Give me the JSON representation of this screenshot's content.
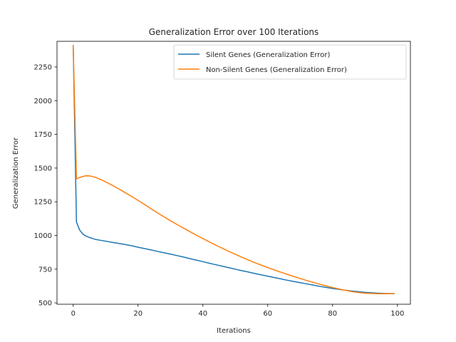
{
  "chart_data": {
    "type": "line",
    "title": "Generalization Error over 100 Iterations",
    "xlabel": "Iterations",
    "ylabel": "Generalization Error",
    "xlim": [
      -5,
      104
    ],
    "ylim": [
      490,
      2440
    ],
    "xticks": [
      0,
      20,
      40,
      60,
      80,
      100
    ],
    "yticks": [
      500,
      750,
      1000,
      1250,
      1500,
      1750,
      2000,
      2250
    ],
    "grid": false,
    "legend_position": "top-right",
    "x": [
      0,
      1,
      2,
      3,
      4,
      5,
      6,
      7,
      8,
      10,
      12,
      14,
      16,
      18,
      20,
      22,
      24,
      26,
      28,
      30,
      32,
      34,
      36,
      38,
      40,
      42,
      44,
      46,
      48,
      50,
      52,
      54,
      56,
      58,
      60,
      62,
      64,
      66,
      68,
      70,
      72,
      74,
      76,
      78,
      80,
      82,
      84,
      86,
      88,
      90,
      92,
      94,
      96,
      98,
      99
    ],
    "series": [
      {
        "name": "Silent Genes (Generalization Error)",
        "color": "#1f77b4",
        "values": [
          2410,
          1100,
          1040,
          1010,
          995,
          985,
          977,
          970,
          966,
          958,
          949,
          941,
          933,
          924,
          913,
          903,
          893,
          882,
          872,
          862,
          851,
          840,
          828,
          817,
          806,
          794,
          783,
          772,
          761,
          750,
          739,
          729,
          718,
          708,
          698,
          688,
          678,
          668,
          659,
          650,
          641,
          632,
          623,
          615,
          607,
          600,
          594,
          588,
          583,
          578,
          575,
          572,
          570,
          569,
          569
        ]
      },
      {
        "name": "Non-Silent Genes (Generalization Error)",
        "color": "#ff7f0e",
        "values": [
          2410,
          1420,
          1430,
          1438,
          1443,
          1442,
          1437,
          1430,
          1420,
          1398,
          1373,
          1346,
          1318,
          1290,
          1260,
          1230,
          1198,
          1168,
          1138,
          1110,
          1082,
          1055,
          1028,
          1002,
          977,
          952,
          928,
          905,
          882,
          860,
          839,
          818,
          798,
          780,
          762,
          745,
          728,
          712,
          696,
          681,
          666,
          652,
          639,
          626,
          614,
          603,
          593,
          584,
          577,
          572,
          570,
          568,
          568,
          569,
          569
        ]
      }
    ]
  }
}
